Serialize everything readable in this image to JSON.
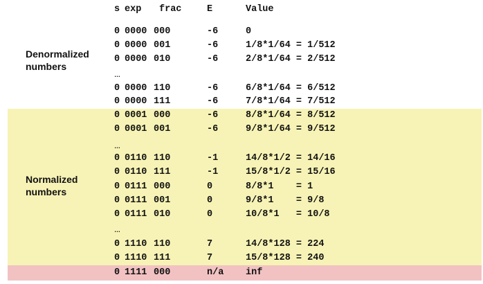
{
  "headers": {
    "s": "s",
    "exp": "exp",
    "frac": "frac",
    "e": "E",
    "value": "Value"
  },
  "group_labels": {
    "denormalized": [
      "Denormalized",
      "numbers"
    ],
    "normalized": [
      "Normalized",
      "numbers"
    ]
  },
  "ellipsis": "…",
  "rows": [
    {
      "s": "0",
      "exp": "0000",
      "frac": "000",
      "e": "-6",
      "value": "0"
    },
    {
      "s": "0",
      "exp": "0000",
      "frac": "001",
      "e": "-6",
      "value": "1/8*1/64 = 1/512"
    },
    {
      "s": "0",
      "exp": "0000",
      "frac": "010",
      "e": "-6",
      "value": "2/8*1/64 = 2/512"
    },
    {
      "s": "0",
      "exp": "0000",
      "frac": "110",
      "e": "-6",
      "value": "6/8*1/64 = 6/512"
    },
    {
      "s": "0",
      "exp": "0000",
      "frac": "111",
      "e": "-6",
      "value": "7/8*1/64 = 7/512"
    },
    {
      "s": "0",
      "exp": "0001",
      "frac": "000",
      "e": "-6",
      "value": "8/8*1/64 = 8/512"
    },
    {
      "s": "0",
      "exp": "0001",
      "frac": "001",
      "e": "-6",
      "value": "9/8*1/64 = 9/512"
    },
    {
      "s": "0",
      "exp": "0110",
      "frac": "110",
      "e": "-1",
      "value": "14/8*1/2 = 14/16"
    },
    {
      "s": "0",
      "exp": "0110",
      "frac": "111",
      "e": "-1",
      "value": "15/8*1/2 = 15/16"
    },
    {
      "s": "0",
      "exp": "0111",
      "frac": "000",
      "e": "0",
      "value": "8/8*1    = 1"
    },
    {
      "s": "0",
      "exp": "0111",
      "frac": "001",
      "e": "0",
      "value": "9/8*1    = 9/8"
    },
    {
      "s": "0",
      "exp": "0111",
      "frac": "010",
      "e": "0",
      "value": "10/8*1   = 10/8"
    },
    {
      "s": "0",
      "exp": "1110",
      "frac": "110",
      "e": "7",
      "value": "14/8*128 = 224"
    },
    {
      "s": "0",
      "exp": "1110",
      "frac": "111",
      "e": "7",
      "value": "15/8*128 = 240"
    },
    {
      "s": "0",
      "exp": "1111",
      "frac": "000",
      "e": "n/a",
      "value": "inf"
    }
  ],
  "colors": {
    "normalized_band": "#f7f3b6",
    "special_band": "#f2c2c2"
  }
}
